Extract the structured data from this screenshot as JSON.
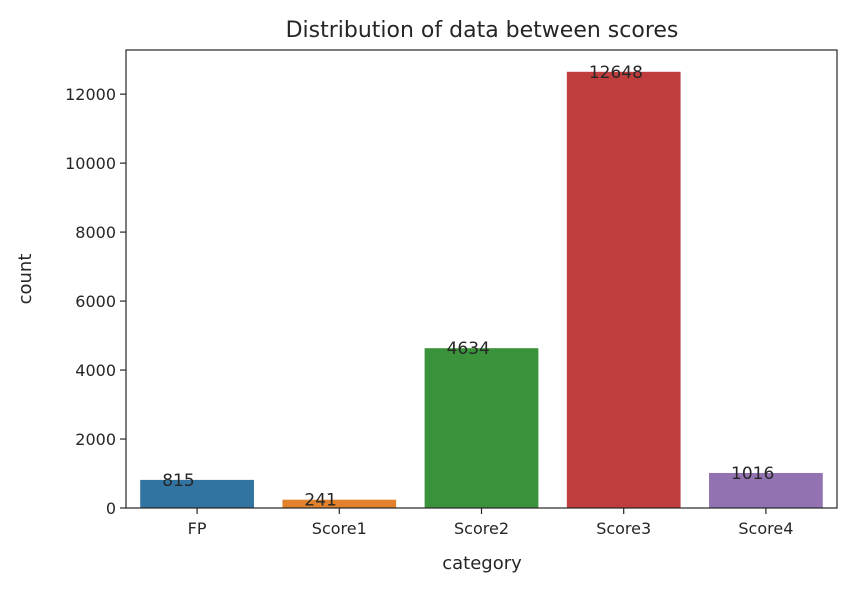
{
  "chart_data": {
    "type": "bar",
    "title": "Distribution of data between scores",
    "xlabel": "category",
    "ylabel": "count",
    "categories": [
      "FP",
      "Score1",
      "Score2",
      "Score3",
      "Score4"
    ],
    "values": [
      815,
      241,
      4634,
      12648,
      1016
    ],
    "data_labels": [
      "815",
      "241",
      "4634",
      "12648",
      "1016"
    ],
    "colors": [
      "#3274a1",
      "#e1812c",
      "#3a923a",
      "#c03d3e",
      "#9372b2"
    ],
    "yticks": [
      0,
      2000,
      4000,
      6000,
      8000,
      10000,
      12000
    ],
    "ytick_labels": [
      "0",
      "2000",
      "4000",
      "6000",
      "8000",
      "10000",
      "12000"
    ],
    "ylim": [
      0,
      13280
    ],
    "grid": false,
    "legend": "none"
  }
}
